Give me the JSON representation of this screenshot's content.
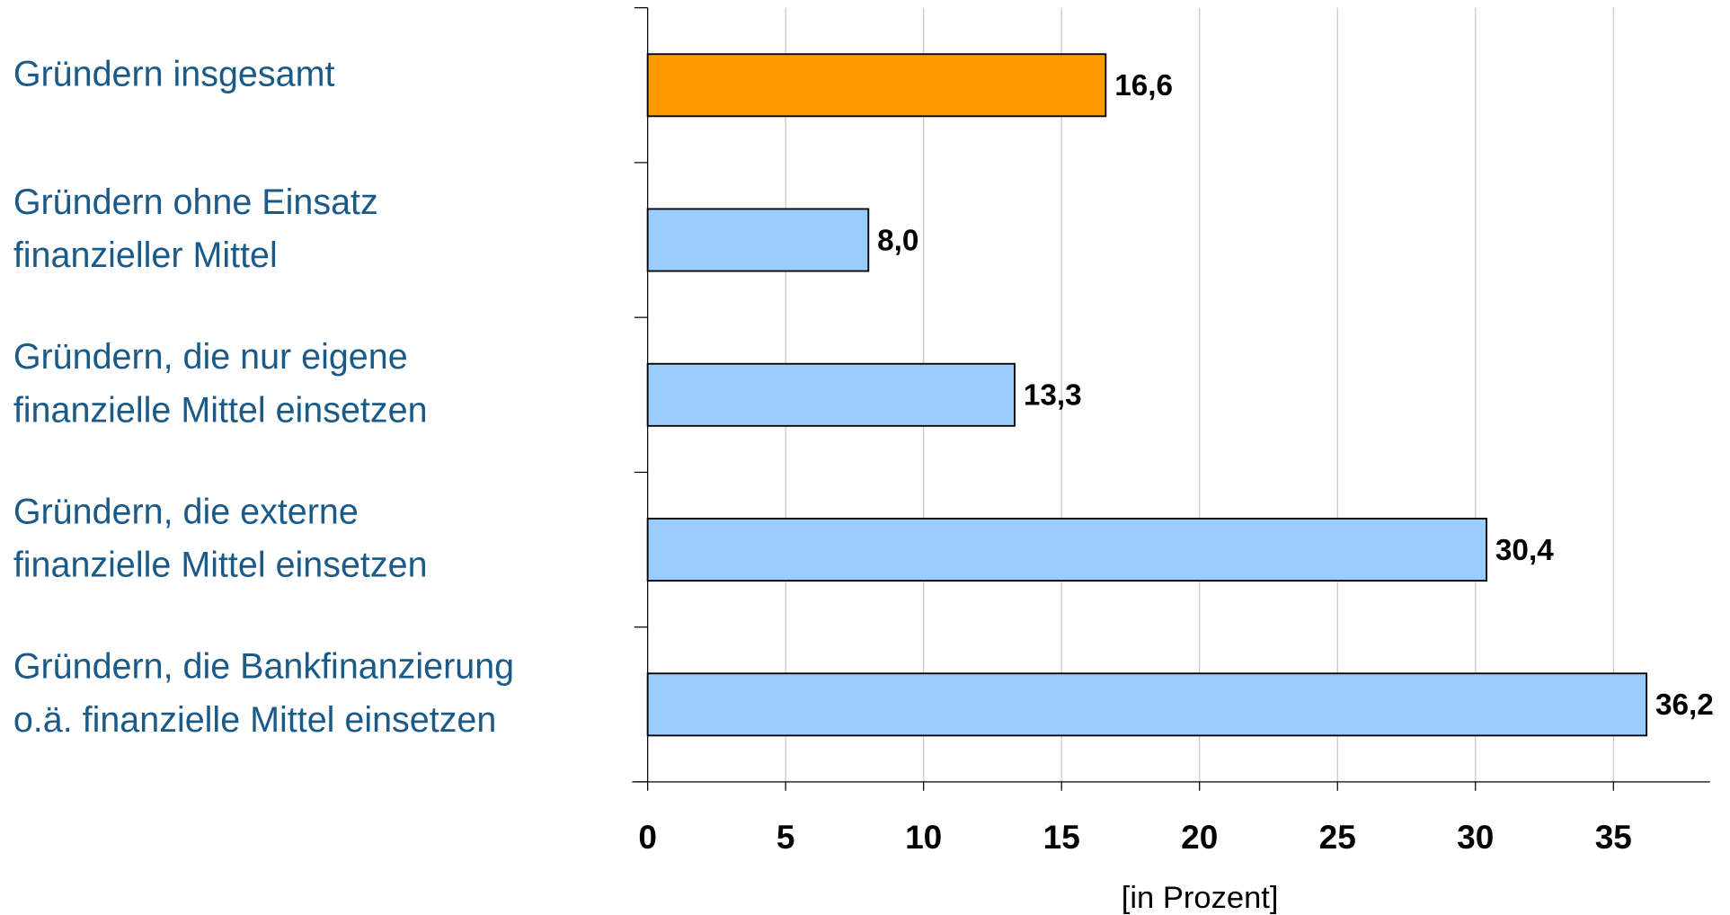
{
  "chart_data": {
    "type": "bar",
    "orientation": "horizontal",
    "categories": [
      [
        "Gründern insgesamt"
      ],
      [
        "Gründern ohne Einsatz",
        "finanzieller Mittel"
      ],
      [
        "Gründern, die nur eigene",
        "finanzielle Mittel einsetzen"
      ],
      [
        "Gründern, die externe",
        "finanzielle Mittel einsetzen"
      ],
      [
        "Gründern, die Bankfinanzierung",
        "o.ä. finanzielle Mittel einsetzen"
      ]
    ],
    "values": [
      16.6,
      8.0,
      13.3,
      30.4,
      36.2
    ],
    "value_labels": [
      "16,6",
      "8,0",
      "13,3",
      "30,4",
      "36,2"
    ],
    "colors": [
      "#ff9900",
      "#99ccff",
      "#99ccff",
      "#99ccff",
      "#99ccff"
    ],
    "xlim": [
      0,
      38.5
    ],
    "xticks": [
      0,
      5,
      10,
      15,
      20,
      25,
      30,
      35
    ],
    "xlabel": "[in Prozent]",
    "grid": true
  }
}
